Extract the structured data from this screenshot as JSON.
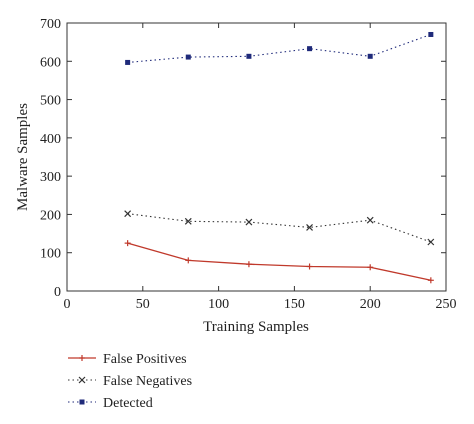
{
  "chart_data": {
    "type": "line",
    "title": "",
    "xlabel": "Training Samples",
    "ylabel": "Malware Samples",
    "xlim": [
      0,
      250
    ],
    "ylim": [
      0,
      700
    ],
    "xticks": [
      0,
      50,
      100,
      150,
      200,
      250
    ],
    "yticks": [
      0,
      100,
      200,
      300,
      400,
      500,
      600,
      700
    ],
    "xtick_labels": [
      "0",
      "50",
      "100",
      "150",
      "200",
      "250"
    ],
    "ytick_labels": [
      "0",
      "100",
      "200",
      "300",
      "400",
      "500",
      "600",
      "700"
    ],
    "x": [
      40,
      80,
      120,
      160,
      200,
      240
    ],
    "grid": false,
    "legend_position": "bottom-left",
    "series": [
      {
        "name": "False Positives",
        "values": [
          125,
          80,
          70,
          64,
          62,
          28
        ],
        "color": "#c0392b",
        "line_style": "solid",
        "marker": "plus"
      },
      {
        "name": "False Negatives",
        "values": [
          202,
          182,
          180,
          166,
          185,
          128
        ],
        "color": "#333333",
        "line_style": "dotted",
        "marker": "x"
      },
      {
        "name": "Detected",
        "values": [
          597,
          611,
          613,
          633,
          613,
          670
        ],
        "color": "#1f2a7a",
        "line_style": "dotted",
        "marker": "square"
      }
    ]
  }
}
